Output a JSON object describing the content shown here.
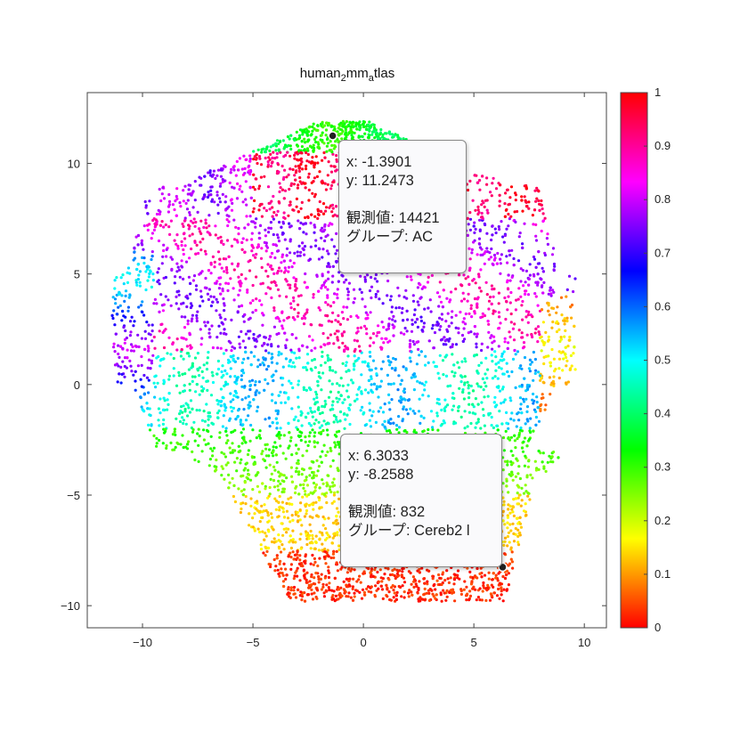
{
  "chart_data": {
    "type": "scatter",
    "title": {
      "main": "human",
      "sub1": "2",
      "mid": "mm",
      "sub2": "a",
      "end": "tlas"
    },
    "xlim": [
      -12.5,
      11
    ],
    "ylim": [
      -11,
      13.2
    ],
    "x_ticks": [
      -10,
      -5,
      0,
      5,
      10
    ],
    "x_tick_labels": [
      "−10",
      "−5",
      "0",
      "5",
      "10"
    ],
    "y_ticks": [
      -10,
      -5,
      0,
      5,
      10
    ],
    "y_tick_labels": [
      "−10",
      "−5",
      "0",
      "5",
      "10"
    ],
    "grid": false,
    "colorbar": {
      "range": [
        0,
        1
      ],
      "ticks": [
        0,
        0.1,
        0.2,
        0.3,
        0.4,
        0.5,
        0.6,
        0.7,
        0.8,
        0.9,
        1
      ],
      "tick_labels": [
        "0",
        "0.1",
        "0.2",
        "0.3",
        "0.4",
        "0.5",
        "0.6",
        "0.7",
        "0.8",
        "0.9",
        "1"
      ],
      "colormap": "hsv"
    },
    "highlighted_points": [
      {
        "x": -1.3901,
        "y": 11.2473,
        "value": 14421,
        "group": "AC"
      },
      {
        "x": 6.3033,
        "y": -8.2588,
        "value": 832,
        "group": "Cereb2 l"
      }
    ]
  },
  "tooltips": [
    {
      "x_line": "x: -1.3901",
      "y_line": "y: 11.2473",
      "value_line": "観測値: 14421",
      "group_line": "グループ: AC"
    },
    {
      "x_line": "x: 6.3033",
      "y_line": "y: -8.2588",
      "value_line": "観測値: 832",
      "group_line": "グループ: Cereb2 l"
    }
  ],
  "colors": {
    "axis": "#444444",
    "marker": "#222222"
  }
}
